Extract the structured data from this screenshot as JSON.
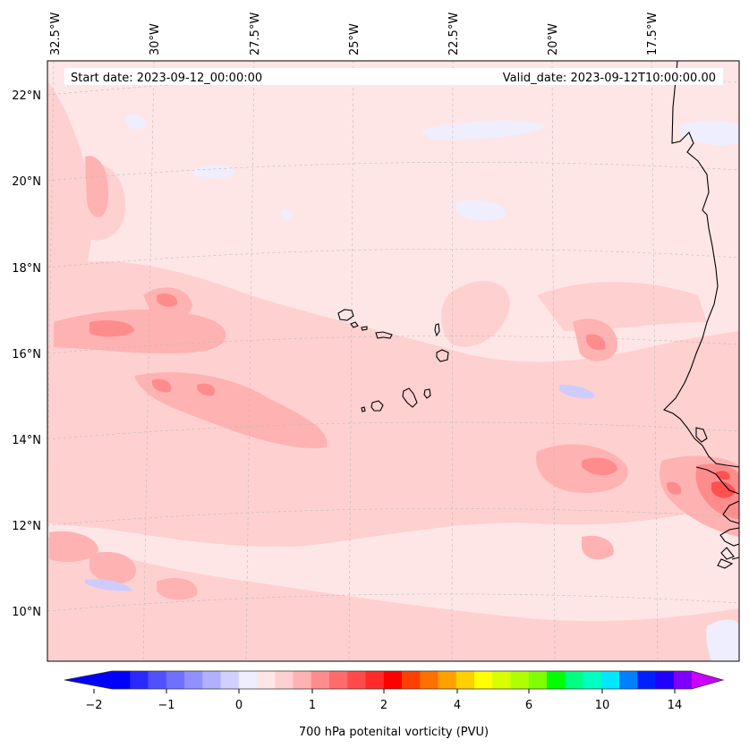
{
  "map": {
    "start_date_label": "Start date: 2023-09-12_00:00:00",
    "valid_date_label": "Valid_date: 2023-09-12T10:00:00.00",
    "longitude_labels": [
      "32.5°W",
      "30°W",
      "27.5°W",
      "25°W",
      "22.5°W",
      "20°W",
      "17.5°W"
    ],
    "latitude_labels": [
      "22°N",
      "20°N",
      "18°N",
      "16°N",
      "14°N",
      "12°N",
      "10°N"
    ],
    "field_colors": {
      "background": "#ffe6e6",
      "light_pink": "#ffd0d0",
      "medium_pink": "#ffb2b2",
      "dark_pink": "#ff8c8c",
      "red": "#ff5050",
      "light_blue": "#eeeeff",
      "blue": "#ccccff",
      "coastline": "#000000"
    }
  },
  "colorbar": {
    "label": "700 hPa potenital vorticity (PVU)",
    "tick_labels": [
      "−2",
      "−1",
      "0",
      "1",
      "2",
      "4",
      "6",
      "10",
      "14"
    ],
    "colors": [
      "#0000ff",
      "#2a2aff",
      "#5050ff",
      "#7070ff",
      "#9090ff",
      "#b0b0ff",
      "#d0d0ff",
      "#eeeeff",
      "#ffe6e6",
      "#ffd0d0",
      "#ffb2b2",
      "#ff8c8c",
      "#ff6a6a",
      "#ff4a4a",
      "#ff2a2a",
      "#ff0000",
      "#ff4000",
      "#ff7000",
      "#ffa000",
      "#ffd000",
      "#ffff00",
      "#d8ff00",
      "#b0ff00",
      "#80ff00",
      "#00ff00",
      "#00ff80",
      "#00ffc0",
      "#00e8ff",
      "#0080ff",
      "#0020ff",
      "#2000ff",
      "#8000ff"
    ],
    "extend_min_color": "#0000ff",
    "extend_max_color": "#cc00ff"
  }
}
